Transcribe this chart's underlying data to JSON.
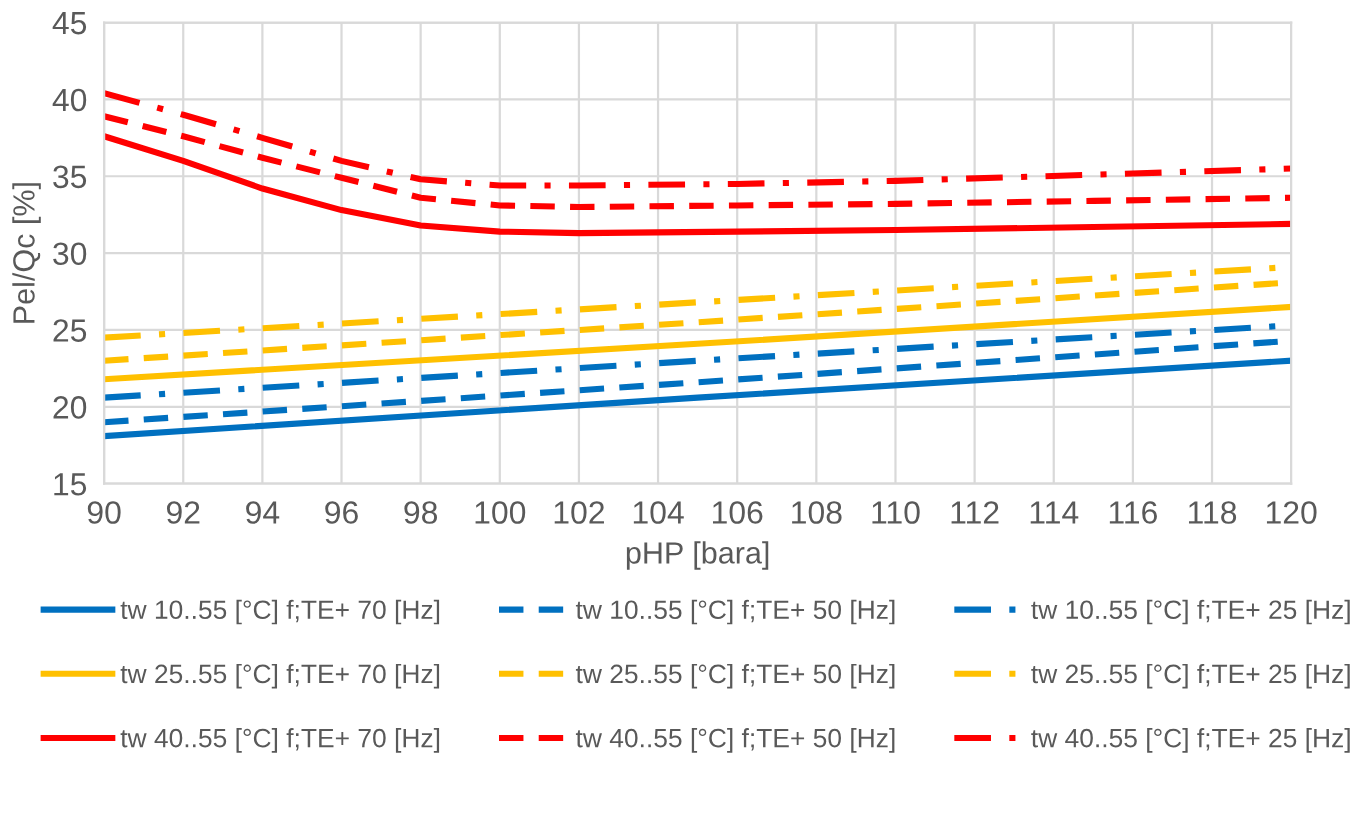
{
  "chart_data": {
    "type": "line",
    "xlabel": "pHP [bara]",
    "ylabel": "Pel/Qc [%]",
    "xlim": [
      90,
      120
    ],
    "xticks": [
      90,
      92,
      94,
      96,
      98,
      100,
      102,
      104,
      106,
      108,
      110,
      112,
      114,
      116,
      118,
      120
    ],
    "ylim": [
      15,
      45
    ],
    "yticks": [
      15,
      20,
      25,
      30,
      35,
      40,
      45
    ],
    "grid": true,
    "legend": "bottom",
    "marker": "none",
    "series": [
      {
        "name": "tw 10..55 [°C] f;TE+ 70 [Hz]",
        "color": "#0070c0",
        "line_style": "solid",
        "x": [
          90,
          105,
          120
        ],
        "values": [
          18.1,
          20.6,
          23.0
        ]
      },
      {
        "name": "tw 10..55 [°C] f;TE+ 50 [Hz]",
        "color": "#0070c0",
        "line_style": "dashed",
        "x": [
          90,
          105,
          120
        ],
        "values": [
          19.0,
          21.6,
          24.3
        ]
      },
      {
        "name": "tw 10..55 [°C] f;TE+ 25 [Hz]",
        "color": "#0070c0",
        "line_style": "dashdot",
        "x": [
          90,
          105,
          120
        ],
        "values": [
          20.6,
          23.0,
          25.3
        ]
      },
      {
        "name": "tw 25..55 [°C] f;TE+ 70 [Hz]",
        "color": "#ffc000",
        "line_style": "solid",
        "x": [
          90,
          105,
          120
        ],
        "values": [
          21.8,
          24.1,
          26.5
        ]
      },
      {
        "name": "tw 25..55 [°C] f;TE+ 50 [Hz]",
        "color": "#ffc000",
        "line_style": "dashed",
        "x": [
          90,
          105,
          120
        ],
        "values": [
          23.0,
          25.5,
          28.1
        ]
      },
      {
        "name": "tw 25..55 [°C] f;TE+ 25 [Hz]",
        "color": "#ffc000",
        "line_style": "dashdot",
        "x": [
          90,
          105,
          120
        ],
        "values": [
          24.5,
          26.8,
          29.1
        ]
      },
      {
        "name": "tw 40..55 [°C] f;TE+ 70 [Hz]",
        "color": "#ff0000",
        "line_style": "solid",
        "x": [
          90,
          92,
          94,
          96,
          98,
          100,
          102,
          106,
          110,
          115,
          120
        ],
        "values": [
          37.6,
          36.0,
          34.2,
          32.8,
          31.8,
          31.4,
          31.3,
          31.4,
          31.5,
          31.7,
          31.9
        ]
      },
      {
        "name": "tw 40..55 [°C] f;TE+ 50 [Hz]",
        "color": "#ff0000",
        "line_style": "dashed",
        "x": [
          90,
          92,
          94,
          96,
          98,
          100,
          102,
          106,
          110,
          115,
          120
        ],
        "values": [
          38.9,
          37.6,
          36.2,
          34.9,
          33.6,
          33.1,
          33.0,
          33.1,
          33.2,
          33.4,
          33.6
        ]
      },
      {
        "name": "tw 40..55 [°C] f;TE+ 25 [Hz]",
        "color": "#ff0000",
        "line_style": "dashdot",
        "x": [
          90,
          92,
          94,
          96,
          98,
          100,
          102,
          106,
          110,
          115,
          120
        ],
        "values": [
          40.4,
          39.0,
          37.5,
          36.0,
          34.8,
          34.4,
          34.4,
          34.5,
          34.7,
          35.1,
          35.5
        ]
      }
    ]
  }
}
